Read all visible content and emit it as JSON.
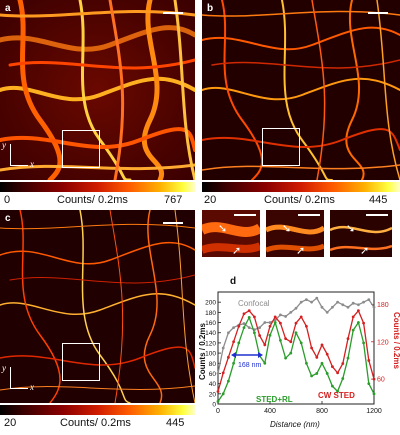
{
  "panels": {
    "a": {
      "label": "a",
      "cbar_min": "0",
      "cbar_title": "Counts/ 0.2ms",
      "cbar_max": "767"
    },
    "b": {
      "label": "b",
      "cbar_min": "20",
      "cbar_title": "Counts/ 0.2ms",
      "cbar_max": "445"
    },
    "c": {
      "label": "c",
      "cbar_min": "20",
      "cbar_title": "Counts/ 0.2ms",
      "cbar_max": "445"
    }
  },
  "axis_labels": {
    "y": "y",
    "x": "x"
  },
  "colors": {
    "accent_red": "#d42020",
    "accent_green": "#2a9d2a",
    "accent_gray": "#8c8c8c",
    "arrow_blue": "#2030d0"
  },
  "plot": {
    "label": "d",
    "fwhm_label": "168 nm",
    "confocal_label": "Confocal",
    "sted_rl_label": "STED+RL",
    "cw_sted_label": "CW STED"
  },
  "chart_data": {
    "type": "line",
    "xlabel": "Distance (nm)",
    "ylabel": "Counts / 0.2ms",
    "ylabel_right": "Counts / 0.2ms",
    "xlim": [
      0,
      1200
    ],
    "ylim": [
      0,
      220
    ],
    "ylim_right": [
      20,
      200
    ],
    "x_ticks": [
      0,
      400,
      800,
      1200
    ],
    "y_ticks": [
      0,
      20,
      40,
      60,
      80,
      100,
      120,
      140,
      160,
      180,
      200
    ],
    "y_ticks_right": [
      60,
      120,
      180
    ],
    "series": [
      {
        "name": "Confocal",
        "axis": "left",
        "color": "#8c8c8c",
        "x": [
          0,
          40,
          80,
          120,
          160,
          200,
          240,
          280,
          320,
          360,
          400,
          440,
          480,
          520,
          560,
          600,
          640,
          680,
          720,
          760,
          800,
          840,
          880,
          920,
          960,
          1000,
          1040,
          1080,
          1120,
          1160,
          1200
        ],
        "y": [
          60,
          110,
          140,
          150,
          155,
          158,
          150,
          146,
          150,
          160,
          160,
          165,
          175,
          172,
          180,
          188,
          200,
          205,
          200,
          208,
          190,
          180,
          190,
          200,
          195,
          190,
          198,
          195,
          200,
          205,
          190
        ]
      },
      {
        "name": "STED+RL",
        "axis": "left",
        "color": "#2a9d2a",
        "x": [
          0,
          40,
          80,
          120,
          160,
          200,
          240,
          280,
          320,
          360,
          400,
          440,
          480,
          520,
          560,
          600,
          640,
          680,
          720,
          760,
          800,
          840,
          880,
          920,
          960,
          1000,
          1040,
          1080,
          1120,
          1160,
          1200
        ],
        "y": [
          5,
          20,
          45,
          80,
          120,
          150,
          170,
          140,
          95,
          80,
          135,
          160,
          125,
          90,
          100,
          140,
          120,
          80,
          55,
          60,
          80,
          60,
          35,
          25,
          50,
          90,
          145,
          160,
          120,
          40,
          20
        ]
      },
      {
        "name": "CW STED",
        "axis": "right",
        "color": "#d42020",
        "x": [
          0,
          40,
          80,
          120,
          160,
          200,
          240,
          280,
          320,
          360,
          400,
          440,
          480,
          520,
          560,
          600,
          640,
          680,
          720,
          760,
          800,
          840,
          880,
          920,
          960,
          1000,
          1040,
          1080,
          1120,
          1160,
          1200
        ],
        "y": [
          40,
          70,
          95,
          120,
          145,
          165,
          170,
          160,
          130,
          115,
          145,
          160,
          150,
          125,
          120,
          150,
          160,
          145,
          110,
          95,
          115,
          100,
          80,
          70,
          85,
          125,
          160,
          170,
          150,
          90,
          60
        ]
      }
    ]
  }
}
